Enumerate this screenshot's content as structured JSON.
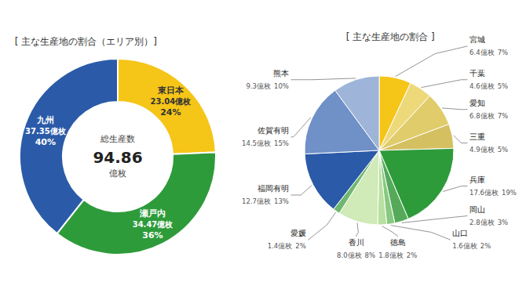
{
  "chart_data": [
    {
      "type": "donut",
      "title": "[ 主な生産地の割合（エリア別）]",
      "categories": [
        "東日本",
        "瀬戸内",
        "九州"
      ],
      "values": [
        23.04,
        34.47,
        37.35
      ],
      "value_labels": [
        "23.04億枚",
        "34.47億枚",
        "37.35億枚"
      ],
      "percents": [
        24,
        36,
        40
      ],
      "percent_labels": [
        "24%",
        "36%",
        "40%"
      ],
      "colors": [
        "#F5C518",
        "#2E9B3A",
        "#2B5BA8"
      ],
      "annotations": [
        "総生産数",
        "94.86",
        "億枚"
      ],
      "data_labels": true
    },
    {
      "type": "pie",
      "title": "[ 主な生産地の割合 ]",
      "categories": [
        "宮城",
        "千葉",
        "愛知",
        "三重",
        "兵庫",
        "岡山",
        "山口",
        "徳島",
        "香川",
        "愛媛",
        "福岡有明",
        "佐賀有明",
        "熊本"
      ],
      "values": [
        6.4,
        4.6,
        6.8,
        4.9,
        17.6,
        2.8,
        1.6,
        1.8,
        8.0,
        1.4,
        12.7,
        14.5,
        9.3
      ],
      "value_labels": [
        "6.4億枚",
        "4.6億枚",
        "6.8億枚",
        "4.9億枚",
        "17.6億枚",
        "2.8億枚",
        "1.6億枚",
        "1.8億枚",
        "8.0億枚",
        "1.4億枚",
        "12.7億枚",
        "14.5億枚",
        "9.3億枚"
      ],
      "percents": [
        7,
        5,
        7,
        5,
        19,
        3,
        2,
        2,
        8,
        2,
        13,
        15,
        10
      ],
      "percent_labels": [
        "7%",
        "5%",
        "7%",
        "5%",
        "19%",
        "3%",
        "2%",
        "2%",
        "8%",
        "2%",
        "13%",
        "15%",
        "10%"
      ],
      "colors": [
        "#F5C518",
        "#EDD97A",
        "#E0CC6A",
        "#D4C060",
        "#2E9B3A",
        "#55AA5A",
        "#88C880",
        "#B8E0A0",
        "#D0EAB8",
        "#70B870",
        "#2B5BA8",
        "#7090C8",
        "#9EB4D8"
      ],
      "data_labels": true
    }
  ]
}
